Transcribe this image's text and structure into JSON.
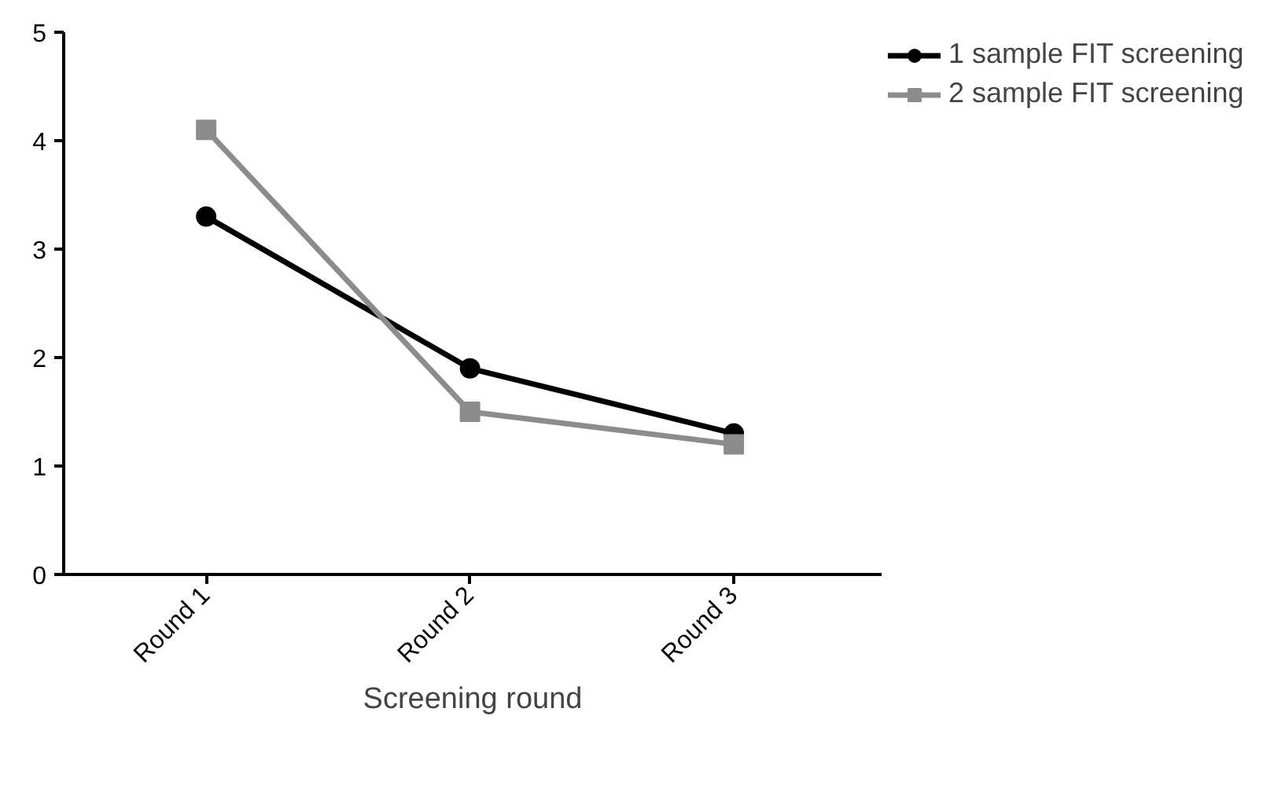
{
  "chart_data": {
    "type": "line",
    "xlabel": "Screening round",
    "categories": [
      "Round 1",
      "Round 2",
      "Round 3"
    ],
    "series": [
      {
        "name": "1 sample FIT screening",
        "color": "#000000",
        "marker": "circle",
        "values": [
          3.3,
          1.9,
          1.3
        ]
      },
      {
        "name": "2 sample FIT screening",
        "color": "#8c8c8c",
        "marker": "square",
        "values": [
          4.1,
          1.5,
          1.2
        ]
      }
    ],
    "ylim": [
      0,
      5
    ],
    "yticks": [
      0,
      1,
      2,
      3,
      4,
      5
    ],
    "grid": false,
    "legend": "top right",
    "line_style": "solid"
  }
}
